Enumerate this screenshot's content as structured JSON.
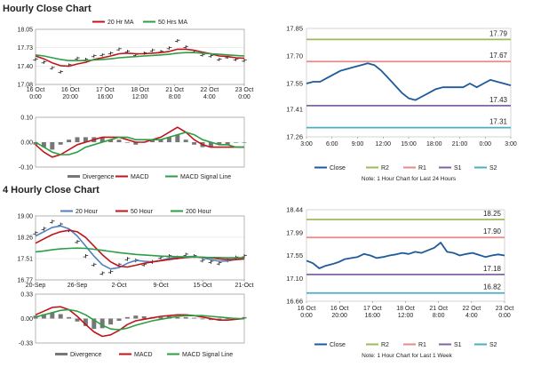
{
  "sections": {
    "hourly_title": "Hourly Close Chart",
    "four_hourly_title": "4 Hourly Close Chart"
  },
  "colors": {
    "close": "#1f5a99",
    "r2": "#9bbb59",
    "r1": "#e8898a",
    "s1": "#8064a2",
    "s2": "#4bacc6",
    "ma_red": "#c0141a",
    "ma_green": "#2e9e45",
    "ma_blue": "#4f81bd",
    "divergence": "#777777",
    "macd": "#c0141a",
    "signal": "#2e9e45"
  },
  "chart_data": [
    {
      "id": "hourly_candles",
      "type": "line",
      "title": "Hourly Close Chart",
      "ylim": [
        17.08,
        18.05
      ],
      "yticks": [
        "18.05",
        "17.73",
        "17.40",
        "17.08"
      ],
      "ytick_values": [
        18.05,
        17.73,
        17.4,
        17.08
      ],
      "xticks": [
        "16 Oct\n0:00",
        "16 Oct\n20:00",
        "17 Oct\n16:00",
        "18 Oct\n12:00",
        "21 Oct\n8:00",
        "22 Oct\n4:00",
        "23 Oct\n0:00"
      ],
      "legend": [
        "20 Hr MA",
        "50 Hrs MA"
      ],
      "price": [
        17.52,
        17.47,
        17.37,
        17.3,
        17.42,
        17.54,
        17.52,
        17.58,
        17.6,
        17.63,
        17.7,
        17.66,
        17.6,
        17.63,
        17.68,
        17.66,
        17.72,
        17.85,
        17.74,
        17.66,
        17.6,
        17.58,
        17.52,
        17.56,
        17.52,
        17.5
      ],
      "series": [
        {
          "name": "20 Hr MA",
          "values": [
            17.58,
            17.53,
            17.46,
            17.41,
            17.4,
            17.44,
            17.47,
            17.52,
            17.55,
            17.58,
            17.62,
            17.63,
            17.62,
            17.62,
            17.63,
            17.64,
            17.66,
            17.7,
            17.7,
            17.68,
            17.65,
            17.62,
            17.58,
            17.57,
            17.55,
            17.54
          ]
        },
        {
          "name": "50 Hrs MA",
          "values": [
            17.6,
            17.58,
            17.55,
            17.52,
            17.5,
            17.5,
            17.5,
            17.51,
            17.52,
            17.53,
            17.55,
            17.56,
            17.57,
            17.58,
            17.59,
            17.6,
            17.61,
            17.63,
            17.64,
            17.64,
            17.63,
            17.62,
            17.61,
            17.6,
            17.59,
            17.58
          ]
        }
      ]
    },
    {
      "id": "hourly_macd",
      "type": "line",
      "ylim": [
        -0.1,
        0.1
      ],
      "yticks": [
        "0.10",
        "0.00",
        "-0.10"
      ],
      "ytick_values": [
        0.1,
        0.0,
        -0.1
      ],
      "legend": [
        "Divergence",
        "MACD",
        "MACD Signal Line"
      ],
      "divergence": [
        -0.01,
        -0.02,
        -0.03,
        -0.01,
        0.01,
        0.02,
        0.02,
        0.02,
        0.02,
        0.01,
        0.01,
        0.0,
        -0.01,
        0.0,
        0.01,
        0.01,
        0.02,
        0.03,
        0.01,
        -0.01,
        -0.02,
        -0.02,
        -0.01,
        -0.01,
        0.0,
        0.0
      ],
      "series": [
        {
          "name": "MACD",
          "values": [
            -0.01,
            -0.04,
            -0.06,
            -0.05,
            -0.03,
            -0.01,
            0.0,
            0.01,
            0.02,
            0.02,
            0.02,
            0.01,
            0.0,
            0.0,
            0.01,
            0.02,
            0.04,
            0.06,
            0.04,
            0.01,
            -0.01,
            -0.02,
            -0.02,
            -0.02,
            -0.02,
            -0.02
          ]
        },
        {
          "name": "MACD Signal Line",
          "values": [
            0.0,
            -0.02,
            -0.04,
            -0.05,
            -0.05,
            -0.04,
            -0.02,
            -0.01,
            0.0,
            0.01,
            0.02,
            0.02,
            0.01,
            0.01,
            0.01,
            0.01,
            0.02,
            0.03,
            0.04,
            0.03,
            0.01,
            0.0,
            -0.01,
            -0.01,
            -0.02,
            -0.02
          ]
        }
      ]
    },
    {
      "id": "hourly_24h",
      "type": "line",
      "ylim": [
        17.26,
        17.85
      ],
      "yticks": [
        "17.85",
        "17.70",
        "17.55",
        "17.41",
        "17.26"
      ],
      "ytick_values": [
        17.85,
        17.7,
        17.55,
        17.41,
        17.26
      ],
      "xticks": [
        "3:00",
        "6:00",
        "9:00",
        "12:00",
        "15:00",
        "18:00",
        "21:00",
        "0:00",
        "3:00"
      ],
      "levels": [
        {
          "name": "R2",
          "value": 17.79,
          "label": "17.79"
        },
        {
          "name": "R1",
          "value": 17.67,
          "label": "17.67"
        },
        {
          "name": "S1",
          "value": 17.43,
          "label": "17.43"
        },
        {
          "name": "S2",
          "value": 17.31,
          "label": "17.31"
        }
      ],
      "close": [
        17.55,
        17.56,
        17.56,
        17.58,
        17.6,
        17.62,
        17.63,
        17.64,
        17.65,
        17.66,
        17.65,
        17.62,
        17.58,
        17.54,
        17.5,
        17.47,
        17.46,
        17.48,
        17.5,
        17.52,
        17.53,
        17.53,
        17.53,
        17.53,
        17.55,
        17.53,
        17.55,
        17.57,
        17.56,
        17.55,
        17.54
      ],
      "legend": [
        "Close",
        "R2",
        "R1",
        "S1",
        "S2"
      ],
      "note": "Note: 1 Hour Chart for Last 24 Hours"
    },
    {
      "id": "four_hourly_candles",
      "type": "line",
      "title": "4 Hourly Close Chart",
      "ylim": [
        16.77,
        19.0
      ],
      "yticks": [
        "19.00",
        "18.26",
        "17.51",
        "16.77"
      ],
      "ytick_values": [
        19.0,
        18.26,
        17.51,
        16.77
      ],
      "xticks": [
        "20-Sep",
        "26-Sep",
        "2-Oct",
        "9-Oct",
        "15-Oct",
        "21-Oct"
      ],
      "legend": [
        "20 Hour",
        "50 Hour",
        "200 Hour"
      ],
      "price": [
        18.4,
        18.55,
        18.8,
        18.7,
        18.5,
        18.1,
        17.6,
        17.3,
        17.0,
        17.05,
        17.3,
        17.5,
        17.45,
        17.3,
        17.4,
        17.55,
        17.6,
        17.55,
        17.65,
        17.6,
        17.45,
        17.4,
        17.35,
        17.45,
        17.55,
        17.6
      ],
      "series": [
        {
          "name": "20 Hour",
          "values": [
            18.3,
            18.45,
            18.6,
            18.65,
            18.55,
            18.3,
            17.95,
            17.6,
            17.3,
            17.15,
            17.2,
            17.35,
            17.45,
            17.42,
            17.4,
            17.45,
            17.52,
            17.56,
            17.58,
            17.59,
            17.54,
            17.48,
            17.42,
            17.43,
            17.48,
            17.54
          ]
        },
        {
          "name": "50 Hour",
          "values": [
            18.05,
            18.2,
            18.35,
            18.45,
            18.5,
            18.45,
            18.25,
            17.95,
            17.65,
            17.4,
            17.25,
            17.22,
            17.28,
            17.35,
            17.4,
            17.44,
            17.48,
            17.52,
            17.55,
            17.57,
            17.56,
            17.54,
            17.5,
            17.48,
            17.48,
            17.5
          ]
        },
        {
          "name": "200 Hour",
          "values": [
            17.75,
            17.78,
            17.82,
            17.85,
            17.87,
            17.88,
            17.87,
            17.84,
            17.8,
            17.76,
            17.72,
            17.69,
            17.66,
            17.64,
            17.62,
            17.6,
            17.59,
            17.58,
            17.57,
            17.57,
            17.56,
            17.55,
            17.55,
            17.54,
            17.54,
            17.54
          ]
        }
      ]
    },
    {
      "id": "four_hourly_macd",
      "type": "line",
      "ylim": [
        -0.33,
        0.33
      ],
      "yticks": [
        "0.33",
        "0.00",
        "-0.33"
      ],
      "ytick_values": [
        0.33,
        0.0,
        -0.33
      ],
      "legend": [
        "Divergence",
        "MACD",
        "MACD Signal Line"
      ],
      "divergence": [
        0.04,
        0.06,
        0.08,
        0.06,
        0.02,
        -0.04,
        -0.1,
        -0.14,
        -0.13,
        -0.08,
        -0.03,
        0.02,
        0.04,
        0.03,
        0.02,
        0.02,
        0.03,
        0.02,
        0.02,
        0.01,
        -0.01,
        -0.02,
        -0.02,
        0.0,
        0.01,
        0.02
      ],
      "series": [
        {
          "name": "MACD",
          "values": [
            0.05,
            0.1,
            0.15,
            0.16,
            0.12,
            0.03,
            -0.08,
            -0.18,
            -0.24,
            -0.22,
            -0.16,
            -0.08,
            -0.03,
            -0.01,
            0.01,
            0.03,
            0.04,
            0.05,
            0.05,
            0.04,
            0.02,
            0.0,
            -0.02,
            -0.02,
            -0.01,
            0.0
          ]
        },
        {
          "name": "MACD Signal Line",
          "values": [
            0.02,
            0.05,
            0.08,
            0.11,
            0.12,
            0.1,
            0.05,
            -0.02,
            -0.09,
            -0.14,
            -0.15,
            -0.13,
            -0.09,
            -0.06,
            -0.03,
            -0.01,
            0.01,
            0.03,
            0.04,
            0.04,
            0.04,
            0.03,
            0.02,
            0.01,
            0.0,
            0.0
          ]
        }
      ]
    },
    {
      "id": "four_hourly_week",
      "type": "line",
      "ylim": [
        16.66,
        18.44
      ],
      "yticks": [
        "18.44",
        "17.99",
        "17.55",
        "17.10",
        "16.66"
      ],
      "ytick_values": [
        18.44,
        17.99,
        17.55,
        17.1,
        16.66
      ],
      "xticks": [
        "16 Oct\n0:00",
        "16 Oct\n20:00",
        "17 Oct\n16:00",
        "18 Oct\n12:00",
        "21 Oct\n8:00",
        "22 Oct\n4:00",
        "23 Oct\n0:00"
      ],
      "levels": [
        {
          "name": "R2",
          "value": 18.25,
          "label": "18.25"
        },
        {
          "name": "R1",
          "value": 17.9,
          "label": "17.90"
        },
        {
          "name": "S1",
          "value": 17.18,
          "label": "17.18"
        },
        {
          "name": "S2",
          "value": 16.82,
          "label": "16.82"
        }
      ],
      "close": [
        17.45,
        17.4,
        17.3,
        17.35,
        17.38,
        17.42,
        17.48,
        17.5,
        17.52,
        17.58,
        17.55,
        17.5,
        17.52,
        17.55,
        17.57,
        17.6,
        17.58,
        17.62,
        17.6,
        17.65,
        17.7,
        17.8,
        17.62,
        17.6,
        17.55,
        17.58,
        17.6,
        17.56,
        17.52,
        17.55,
        17.57,
        17.55
      ],
      "legend": [
        "Close",
        "R2",
        "R1",
        "S1",
        "S2"
      ],
      "note": "Note: 1 Hour Chart for Last 1 Week"
    }
  ]
}
